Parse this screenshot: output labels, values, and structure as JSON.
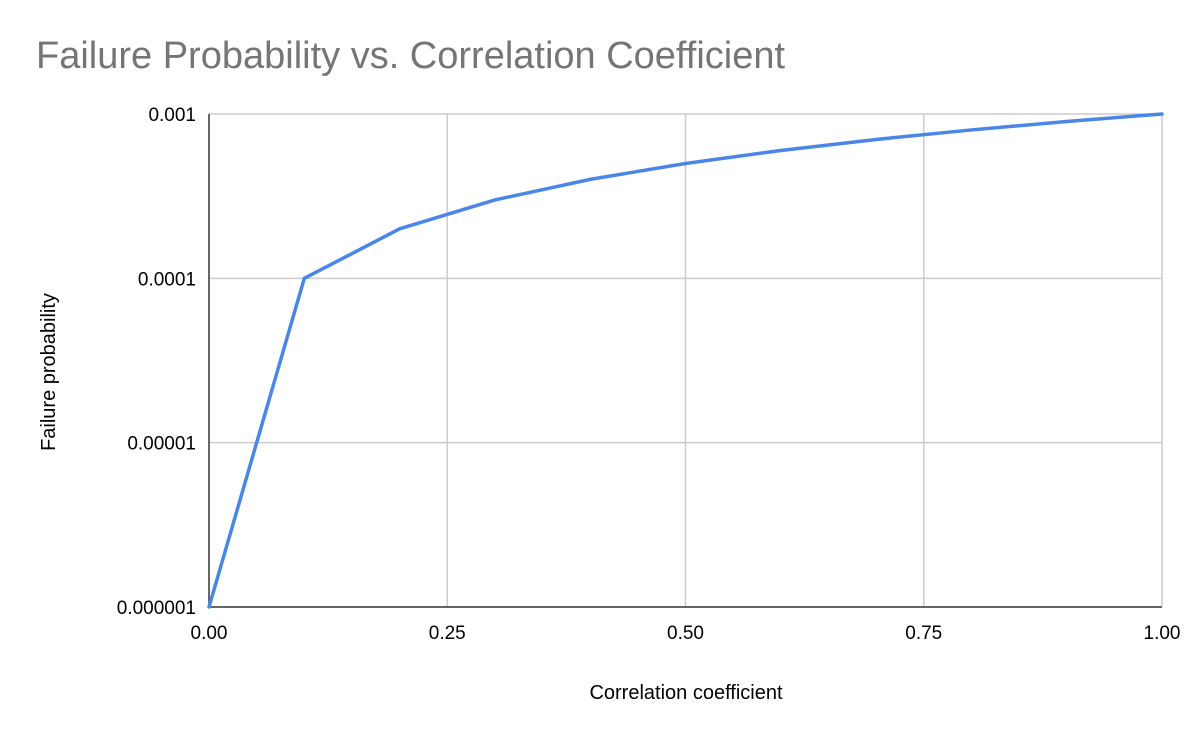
{
  "chart_data": {
    "type": "line",
    "title": "Failure Probability vs. Correlation Coefficient",
    "xlabel": "Correlation coefficient",
    "ylabel": "Failure probability",
    "xlim": [
      0,
      1
    ],
    "ylim": [
      1e-06,
      0.001
    ],
    "yscale": "log",
    "x_ticks": [
      {
        "value": 0,
        "label": "0.00"
      },
      {
        "value": 0.25,
        "label": "0.25"
      },
      {
        "value": 0.5,
        "label": "0.50"
      },
      {
        "value": 0.75,
        "label": "0.75"
      },
      {
        "value": 1,
        "label": "1.00"
      }
    ],
    "y_ticks": [
      {
        "value": 1e-06,
        "label": "0.000001"
      },
      {
        "value": 1e-05,
        "label": "0.00001"
      },
      {
        "value": 0.0001,
        "label": "0.0001"
      },
      {
        "value": 0.001,
        "label": "0.001"
      }
    ],
    "grid": true,
    "legend": "none",
    "series": [
      {
        "color": "#4a86e8",
        "x": [
          0,
          0.1,
          0.2,
          0.3,
          0.4,
          0.5,
          0.6,
          0.7,
          0.8,
          0.9,
          1.0
        ],
        "y": [
          1e-06,
          0.0001,
          0.0002,
          0.0003,
          0.0004,
          0.0005,
          0.0006,
          0.0007,
          0.0008,
          0.0009,
          0.001
        ]
      }
    ],
    "colors": {
      "grid": "#cccccc",
      "axis": "#333333",
      "title": "#757575"
    }
  }
}
